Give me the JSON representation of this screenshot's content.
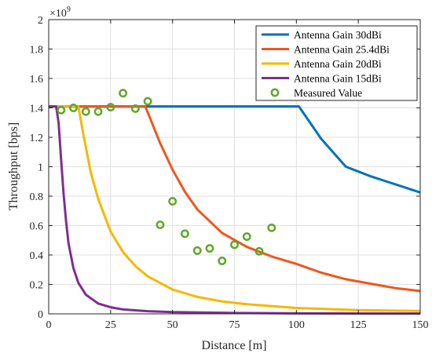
{
  "chart_data": {
    "type": "line",
    "xlabel": "Distance [m]",
    "ylabel": "Throughput [bps]",
    "y_exponent_label": "×10",
    "y_exponent_power": "9",
    "xlim": [
      0,
      150
    ],
    "ylim": [
      0,
      2
    ],
    "xticks": [
      0,
      25,
      50,
      75,
      100,
      125,
      150
    ],
    "yticks": [
      0,
      0.2,
      0.4,
      0.6,
      0.8,
      1,
      1.2,
      1.4,
      1.6,
      1.8,
      2
    ],
    "ytick_labels": [
      "0",
      "0.2",
      "0.4",
      "0.6",
      "0.8",
      "1",
      "1.2",
      "1.4",
      "1.6",
      "1.8",
      "2"
    ],
    "grid": true,
    "legend_position": "top-right",
    "series": [
      {
        "name": "Antenna Gain 30dBi",
        "color": "#0072BD",
        "kind": "line",
        "x": [
          0,
          101,
          110,
          120,
          130,
          140,
          150
        ],
        "y": [
          1.41,
          1.41,
          1.19,
          1.0,
          0.935,
          0.88,
          0.825
        ]
      },
      {
        "name": "Antenna Gain 25.4dBi",
        "color": "#F0561D",
        "kind": "line",
        "x": [
          0,
          39,
          45,
          50,
          55,
          60,
          70,
          80,
          90,
          100,
          110,
          120,
          130,
          140,
          150
        ],
        "y": [
          1.41,
          1.41,
          1.16,
          0.98,
          0.83,
          0.71,
          0.55,
          0.455,
          0.39,
          0.34,
          0.28,
          0.235,
          0.205,
          0.175,
          0.155
        ]
      },
      {
        "name": "Antenna Gain 20dBi",
        "color": "#F5B800",
        "kind": "line",
        "x": [
          0,
          12,
          14,
          17,
          20,
          25,
          30,
          35,
          40,
          50,
          60,
          70,
          80,
          100,
          125,
          150
        ],
        "y": [
          1.41,
          1.41,
          1.22,
          0.96,
          0.78,
          0.56,
          0.42,
          0.325,
          0.255,
          0.165,
          0.115,
          0.085,
          0.065,
          0.04,
          0.025,
          0.02
        ]
      },
      {
        "name": "Antenna Gain 15dBi",
        "color": "#7E2F8E",
        "kind": "line",
        "x": [
          0,
          3,
          4,
          5,
          6,
          7,
          8,
          10,
          12,
          15,
          20,
          25,
          30,
          40,
          50,
          75,
          100,
          150
        ],
        "y": [
          1.41,
          1.41,
          1.3,
          1.05,
          0.82,
          0.63,
          0.48,
          0.31,
          0.21,
          0.13,
          0.07,
          0.045,
          0.03,
          0.018,
          0.012,
          0.006,
          0.003,
          0.002
        ]
      },
      {
        "name": "Measured Value",
        "color": "#5FA82A",
        "kind": "marker",
        "x": [
          5,
          10,
          15,
          20,
          25,
          30,
          35,
          40,
          45,
          50,
          55,
          60,
          65,
          70,
          75,
          80,
          85,
          90
        ],
        "y": [
          1.385,
          1.4,
          1.375,
          1.375,
          1.405,
          1.5,
          1.395,
          1.445,
          0.605,
          0.765,
          0.545,
          0.43,
          0.445,
          0.36,
          0.47,
          0.525,
          0.425,
          0.585
        ]
      }
    ]
  }
}
